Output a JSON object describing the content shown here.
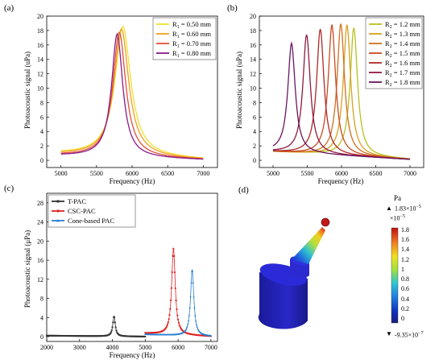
{
  "panels": [
    "(a)",
    "(b)",
    "(c)",
    "(d)"
  ],
  "chart_data": [
    {
      "type": "line",
      "panel": "(a)",
      "xlabel": "Frequency (Hz)",
      "ylabel": "Photoacoustic signal (uPa)",
      "xlim": [
        4800,
        7200
      ],
      "ylim": [
        -1,
        20
      ],
      "xticks": [
        5000,
        5500,
        6000,
        6500,
        7000
      ],
      "yticks": [
        0,
        2,
        4,
        6,
        8,
        10,
        12,
        14,
        16,
        18,
        20
      ],
      "legend": "top-right",
      "series": [
        {
          "name": "R1 = 0.50 mm",
          "legend_main": "R",
          "legend_sub": "1",
          "legend_rest": " = 0.50 mm",
          "color": "#f2e030",
          "f0": 5870,
          "peak": 18.0,
          "gamma": 135,
          "base": 0.65
        },
        {
          "name": "R1 = 0.60 mm",
          "legend_main": "R",
          "legend_sub": "1",
          "legend_rest": " = 0.60 mm",
          "color": "#f0a020",
          "f0": 5850,
          "peak": 17.7,
          "gamma": 125,
          "base": 0.6
        },
        {
          "name": "R1 = 0.70 mm",
          "legend_main": "R",
          "legend_sub": "1",
          "legend_rest": " = 0.70 mm",
          "color": "#e0503a",
          "f0": 5820,
          "peak": 17.3,
          "gamma": 110,
          "base": 0.5
        },
        {
          "name": "R1 = 0.80 mm",
          "legend_main": "R",
          "legend_sub": "1",
          "legend_rest": " = 0.80 mm",
          "color": "#8a1a8a",
          "f0": 5790,
          "peak": 17.1,
          "gamma": 95,
          "base": 0.45
        }
      ]
    },
    {
      "type": "line",
      "panel": "(b)",
      "xlabel": "Frequency (Hz)",
      "ylabel": "Photoacoustic signal (uPa)",
      "xlim": [
        4800,
        7200
      ],
      "ylim": [
        -1,
        20
      ],
      "xticks": [
        5000,
        5500,
        6000,
        6500,
        7000
      ],
      "yticks": [
        0,
        2,
        4,
        6,
        8,
        10,
        12,
        14,
        16,
        18,
        20
      ],
      "legend": "top-right",
      "series": [
        {
          "name": "R2 = 1.2 mm",
          "legend_main": "R",
          "legend_sub": "2",
          "legend_rest": " = 1.2 mm",
          "color": "#b8c020",
          "f0": 6180,
          "peak": 17.8,
          "gamma": 65,
          "base": 0.9
        },
        {
          "name": "R2 = 1.3 mm",
          "legend_main": "R",
          "legend_sub": "2",
          "legend_rest": " = 1.3 mm",
          "color": "#d8a020",
          "f0": 6080,
          "peak": 18.2,
          "gamma": 65,
          "base": 0.85
        },
        {
          "name": "R2 = 1.4 mm",
          "legend_main": "R",
          "legend_sub": "2",
          "legend_rest": " = 1.4 mm",
          "color": "#d07020",
          "f0": 5990,
          "peak": 18.3,
          "gamma": 65,
          "base": 0.85
        },
        {
          "name": "R2 = 1.5 mm",
          "legend_main": "R",
          "legend_sub": "2",
          "legend_rest": " = 1.5 mm",
          "color": "#c84a20",
          "f0": 5860,
          "peak": 18.1,
          "gamma": 65,
          "base": 0.85
        },
        {
          "name": "R2 = 1.6 mm",
          "legend_main": "R",
          "legend_sub": "2",
          "legend_rest": " = 1.6 mm",
          "color": "#b02828",
          "f0": 5690,
          "peak": 17.4,
          "gamma": 65,
          "base": 0.85
        },
        {
          "name": "R2 = 1.7 mm",
          "legend_main": "R",
          "legend_sub": "2",
          "legend_rest": " = 1.7 mm",
          "color": "#901a40",
          "f0": 5490,
          "peak": 16.5,
          "gamma": 65,
          "base": 0.85
        },
        {
          "name": "R2 = 1.8 mm",
          "legend_main": "R",
          "legend_sub": "2",
          "legend_rest": " = 1.8 mm",
          "color": "#6a1560",
          "f0": 5270,
          "peak": 15.2,
          "gamma": 65,
          "base": 0.85
        }
      ]
    },
    {
      "type": "line",
      "panel": "(c)",
      "xlabel": "Frequency (Hz)",
      "ylabel": "Photoacoustic signal (μPa)",
      "xlim": [
        2000,
        7200
      ],
      "ylim": [
        -1,
        30
      ],
      "xticks": [
        2000,
        3000,
        4000,
        5000,
        6000,
        7000
      ],
      "yticks": [
        0,
        4,
        8,
        12,
        16,
        20,
        24,
        28
      ],
      "legend": "top-left",
      "series": [
        {
          "name": "T-PAC",
          "color": "#333333",
          "marker": "square",
          "range": [
            2000,
            5000
          ],
          "f0": 4050,
          "peak": 4.2,
          "gamma": 45,
          "base": 0.15
        },
        {
          "name": "CSC-PAC",
          "color": "#e02020",
          "marker": "circle",
          "range": [
            5000,
            7000
          ],
          "f0": 5860,
          "peak": 18.0,
          "gamma": 65,
          "base": 0.5
        },
        {
          "name": "Cone-based PAC",
          "color": "#2a7fd0",
          "marker": "triangle",
          "range": [
            5000,
            7000
          ],
          "f0": 6430,
          "peak": 13.9,
          "gamma": 60,
          "base": 0.35
        }
      ]
    }
  ],
  "panel_d": {
    "colorbar_title": "Pa",
    "max_marker": "▲",
    "min_marker": "▼",
    "max_value_text": "1.83×10",
    "max_value_exp": "−5",
    "multiplier_text": "×10",
    "multiplier_exp": "−5",
    "min_value_text": "-9.35×10",
    "min_value_exp": "−7",
    "ticks": [
      "1.8",
      "1.6",
      "1.4",
      "1.2",
      "1",
      "0.8",
      "0.6",
      "0.4",
      "0.2",
      "0"
    ]
  }
}
